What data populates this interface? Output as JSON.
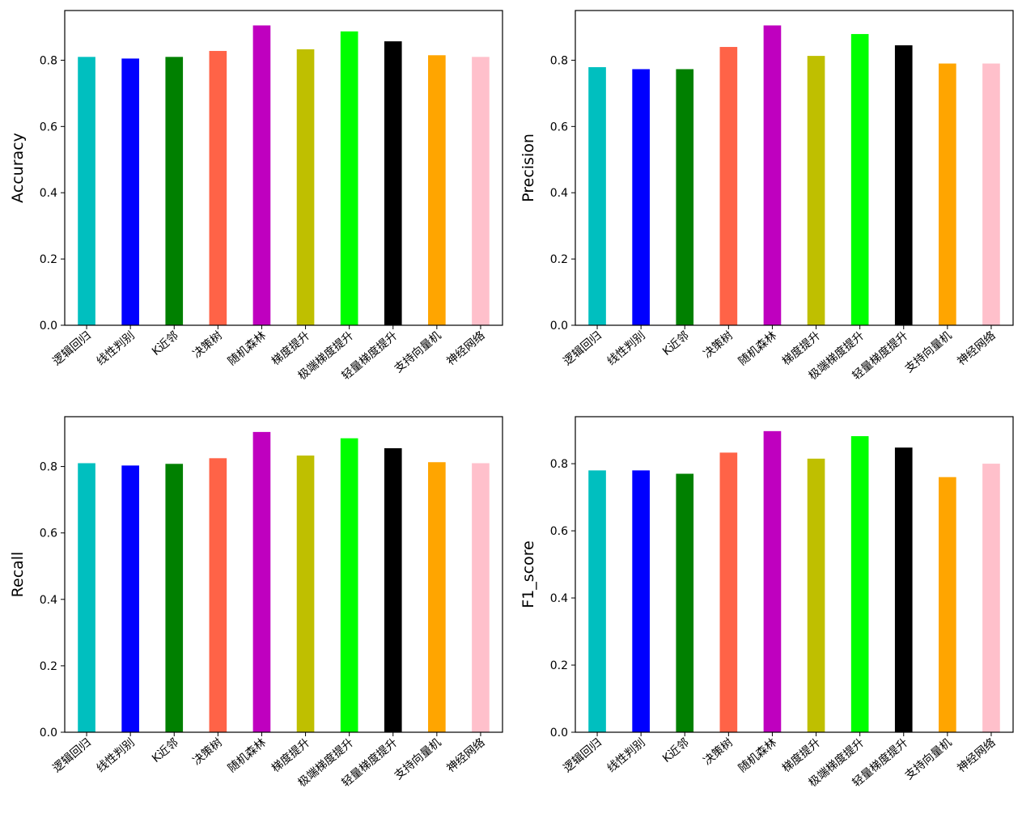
{
  "chart_data": [
    {
      "type": "bar",
      "ylabel": "Accuracy",
      "categories": [
        "逻辑回归",
        "线性判别",
        "K近邻",
        "决策树",
        "随机森林",
        "梯度提升",
        "极端梯度提升",
        "轻量梯度提升",
        "支持向量机",
        "神经网络"
      ],
      "values": [
        0.81,
        0.805,
        0.81,
        0.828,
        0.905,
        0.833,
        0.887,
        0.857,
        0.815,
        0.81
      ],
      "ylim": [
        0,
        0.95
      ],
      "yticks": [
        "0.0",
        "0.2",
        "0.4",
        "0.6",
        "0.8"
      ],
      "yticks_values": [
        0,
        0.2,
        0.4,
        0.6,
        0.8
      ],
      "colors": [
        "#00bfbf",
        "#0000ff",
        "#008000",
        "#ff6347",
        "#bf00bf",
        "#bfbf00",
        "#00ff00",
        "#000000",
        "#ffa500",
        "#ffc0cb"
      ],
      "grid": false
    },
    {
      "type": "bar",
      "ylabel": "Precision",
      "categories": [
        "逻辑回归",
        "线性判别",
        "K近邻",
        "决策树",
        "随机森林",
        "梯度提升",
        "极端梯度提升",
        "轻量梯度提升",
        "支持向量机",
        "神经网络"
      ],
      "values": [
        0.779,
        0.773,
        0.773,
        0.84,
        0.905,
        0.813,
        0.879,
        0.845,
        0.79,
        0.79
      ],
      "ylim": [
        0,
        0.95
      ],
      "yticks": [
        "0.0",
        "0.2",
        "0.4",
        "0.6",
        "0.8"
      ],
      "yticks_values": [
        0,
        0.2,
        0.4,
        0.6,
        0.8
      ],
      "colors": [
        "#00bfbf",
        "#0000ff",
        "#008000",
        "#ff6347",
        "#bf00bf",
        "#bfbf00",
        "#00ff00",
        "#000000",
        "#ffa500",
        "#ffc0cb"
      ],
      "grid": false
    },
    {
      "type": "bar",
      "ylabel": "Recall",
      "categories": [
        "逻辑回归",
        "线性判别",
        "K近邻",
        "决策树",
        "随机森林",
        "梯度提升",
        "极端梯度提升",
        "轻量梯度提升",
        "支持向量机",
        "神经网络"
      ],
      "values": [
        0.81,
        0.803,
        0.808,
        0.825,
        0.904,
        0.833,
        0.885,
        0.855,
        0.813,
        0.81
      ],
      "ylim": [
        0,
        0.95
      ],
      "yticks": [
        "0.0",
        "0.2",
        "0.4",
        "0.6",
        "0.8"
      ],
      "yticks_values": [
        0,
        0.2,
        0.4,
        0.6,
        0.8
      ],
      "colors": [
        "#00bfbf",
        "#0000ff",
        "#008000",
        "#ff6347",
        "#bf00bf",
        "#bfbf00",
        "#00ff00",
        "#000000",
        "#ffa500",
        "#ffc0cb"
      ],
      "grid": false
    },
    {
      "type": "bar",
      "ylabel": "F1_score",
      "categories": [
        "逻辑回归",
        "线性判别",
        "K近邻",
        "决策树",
        "随机森林",
        "梯度提升",
        "极端梯度提升",
        "轻量梯度提升",
        "支持向量机",
        "神经网络"
      ],
      "values": [
        0.78,
        0.78,
        0.77,
        0.833,
        0.897,
        0.815,
        0.882,
        0.848,
        0.76,
        0.8
      ],
      "ylim": [
        0,
        0.94
      ],
      "yticks": [
        "0.0",
        "0.2",
        "0.4",
        "0.6",
        "0.8"
      ],
      "yticks_values": [
        0,
        0.2,
        0.4,
        0.6,
        0.8
      ],
      "colors": [
        "#00bfbf",
        "#0000ff",
        "#008000",
        "#ff6347",
        "#bf00bf",
        "#bfbf00",
        "#00ff00",
        "#000000",
        "#ffa500",
        "#ffc0cb"
      ],
      "grid": false
    }
  ]
}
